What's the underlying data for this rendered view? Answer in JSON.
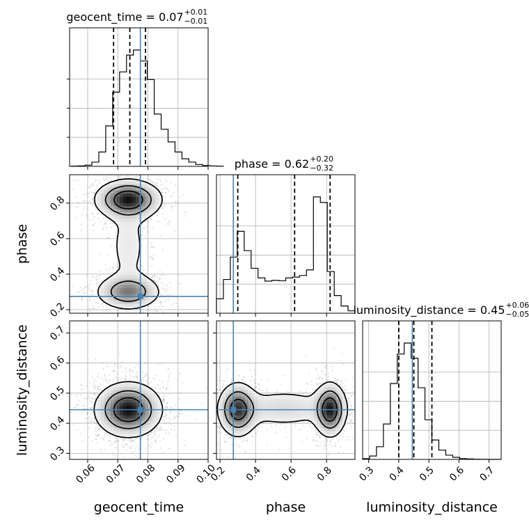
{
  "chart_data": {
    "type": "corner",
    "parameters": [
      "geocent_time",
      "phase",
      "luminosity_distance"
    ],
    "truth": {
      "geocent_time": 0.0775,
      "phase": 0.275,
      "luminosity_distance": 0.445
    },
    "colors": {
      "truth": "#4682b4",
      "hist": "#000000",
      "quantile": "#000000",
      "grid": "#b0b0b0"
    },
    "titles": [
      {
        "param": "geocent_time",
        "base": "geocent_time = 0.07",
        "sup": "+0.01",
        "sub": "−0.01"
      },
      {
        "param": "phase",
        "base": "phase = 0.62",
        "sup": "+0.20",
        "sub": "−0.32"
      },
      {
        "param": "luminosity_distance",
        "base": "luminosity_distance = 0.45",
        "sup": "+0.06",
        "sub": "−0.05"
      }
    ],
    "axis_labels": {
      "x": [
        "geocent_time",
        "phase",
        "luminosity_distance"
      ],
      "y": [
        "phase",
        "luminosity_distance"
      ]
    },
    "ranges": {
      "geocent_time": [
        0.054,
        0.1
      ],
      "phase": [
        0.18,
        0.96
      ],
      "luminosity_distance": [
        0.28,
        0.74
      ]
    },
    "ticks": {
      "geocent_time": [
        0.06,
        0.07,
        0.08,
        0.09,
        0.1
      ],
      "phase": [
        0.2,
        0.4,
        0.6,
        0.8
      ],
      "luminosity_distance": [
        0.3,
        0.4,
        0.5,
        0.6,
        0.7
      ]
    },
    "tick_labels": {
      "geocent_time": [
        "0.06",
        "0.07",
        "0.08",
        "0.09",
        "0.10"
      ],
      "phase": [
        "0.2",
        "0.4",
        "0.6",
        "0.8"
      ],
      "luminosity_distance": [
        "0.3",
        "0.4",
        "0.5",
        "0.6",
        "0.7"
      ]
    },
    "quantiles": {
      "geocent_time": [
        0.0686,
        0.074,
        0.0792
      ],
      "phase": [
        0.3,
        0.62,
        0.82
      ],
      "luminosity_distance": [
        0.4,
        0.45,
        0.51
      ]
    },
    "histograms": {
      "geocent_time": {
        "edges_start": 0.0545,
        "bin_width": 0.0023,
        "counts": [
          2,
          5,
          15,
          50,
          170,
          480,
          880,
          1120,
          1320,
          1380,
          1250,
          1030,
          620,
          440,
          290,
          170,
          90,
          50,
          22,
          10,
          4,
          2
        ]
      },
      "phase": {
        "edges_start": 0.18,
        "bin_width": 0.039,
        "counts": [
          180,
          420,
          700,
          1020,
          780,
          560,
          440,
          400,
          410,
          405,
          440,
          450,
          470,
          540,
          1450,
          1380,
          520,
          220,
          90,
          30
        ]
      },
      "luminosity_distance": {
        "edges_start": 0.28,
        "bin_width": 0.023,
        "counts": [
          10,
          40,
          150,
          420,
          900,
          1250,
          1380,
          1200,
          850,
          470,
          230,
          110,
          50,
          25,
          10,
          5,
          2,
          1,
          0,
          0
        ]
      }
    },
    "densities": {
      "phase_vs_geocent_time": {
        "modes": [
          {
            "x": 0.0735,
            "y": 0.82,
            "sx": 0.0055,
            "sy": 0.055,
            "w": 1.0
          },
          {
            "x": 0.0735,
            "y": 0.3,
            "sx": 0.0055,
            "sy": 0.05,
            "w": 0.65
          },
          {
            "x": 0.0735,
            "y": 0.56,
            "sx": 0.0045,
            "sy": 0.17,
            "w": 0.18
          }
        ]
      },
      "luminosity_distance_vs_geocent_time": {
        "modes": [
          {
            "x": 0.0735,
            "y": 0.445,
            "sx": 0.0055,
            "sy": 0.045,
            "w": 1.0
          }
        ]
      },
      "luminosity_distance_vs_phase": {
        "modes": [
          {
            "x": 0.3,
            "y": 0.445,
            "sx": 0.055,
            "sy": 0.045,
            "w": 1.0
          },
          {
            "x": 0.82,
            "y": 0.445,
            "sx": 0.045,
            "sy": 0.045,
            "w": 1.1
          },
          {
            "x": 0.56,
            "y": 0.45,
            "sx": 0.17,
            "sy": 0.038,
            "w": 0.3
          }
        ]
      }
    }
  }
}
